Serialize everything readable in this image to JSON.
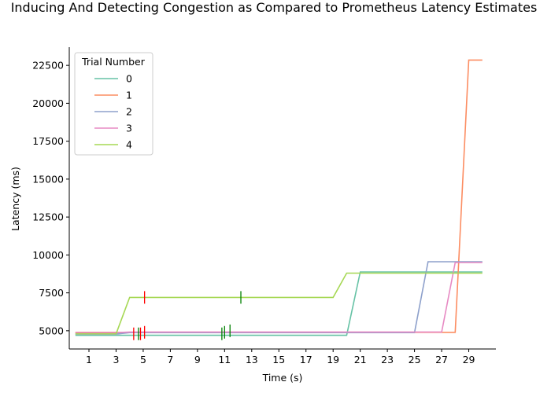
{
  "chart_data": {
    "type": "line",
    "title": "Inducing And Detecting Congestion as Compared to Prometheus Latency Estimates",
    "xlabel": "Time (s)",
    "ylabel": "Latency (ms)",
    "xlim": [
      -0.45,
      31.0
    ],
    "ylim": [
      3800,
      23700
    ],
    "x_ticks": [
      1,
      3,
      5,
      7,
      9,
      11,
      13,
      15,
      17,
      19,
      21,
      23,
      25,
      27,
      29
    ],
    "y_ticks": [
      5000,
      7500,
      10000,
      12500,
      15000,
      17500,
      20000,
      22500
    ],
    "legend": {
      "title": "Trial Number",
      "position": "top-left"
    },
    "series": [
      {
        "name": "0",
        "color": "#66c2a5",
        "points": [
          [
            0,
            4700
          ],
          [
            3,
            4700
          ],
          [
            4,
            4700
          ],
          [
            5,
            4700
          ],
          [
            6,
            4700
          ],
          [
            7,
            4700
          ],
          [
            8,
            4700
          ],
          [
            9,
            4700
          ],
          [
            10,
            4700
          ],
          [
            11,
            4700
          ],
          [
            12,
            4700
          ],
          [
            13,
            4700
          ],
          [
            14,
            4700
          ],
          [
            15,
            4700
          ],
          [
            16,
            4700
          ],
          [
            17,
            4700
          ],
          [
            18,
            4700
          ],
          [
            19,
            4700
          ],
          [
            20,
            4700
          ],
          [
            21,
            8880
          ],
          [
            22,
            8880
          ],
          [
            23,
            8880
          ],
          [
            24,
            8880
          ],
          [
            25,
            8880
          ],
          [
            26,
            8880
          ],
          [
            27,
            8880
          ],
          [
            28,
            8880
          ],
          [
            29,
            8880
          ],
          [
            30,
            8880
          ]
        ]
      },
      {
        "name": "1",
        "color": "#fc8d62",
        "points": [
          [
            0,
            4900
          ],
          [
            3,
            4900
          ],
          [
            4,
            4900
          ],
          [
            5,
            4900
          ],
          [
            10,
            4900
          ],
          [
            15,
            4900
          ],
          [
            20,
            4900
          ],
          [
            25,
            4900
          ],
          [
            26,
            4900
          ],
          [
            27,
            4900
          ],
          [
            28,
            4900
          ],
          [
            29,
            22850
          ],
          [
            30,
            22850
          ]
        ]
      },
      {
        "name": "2",
        "color": "#8da0cb",
        "points": [
          [
            0,
            4780
          ],
          [
            3,
            4780
          ],
          [
            4,
            4880
          ],
          [
            5,
            4880
          ],
          [
            10,
            4880
          ],
          [
            15,
            4880
          ],
          [
            20,
            4880
          ],
          [
            25,
            4880
          ],
          [
            26,
            9550
          ],
          [
            27,
            9550
          ],
          [
            28,
            9550
          ],
          [
            29,
            9550
          ],
          [
            30,
            9550
          ]
        ]
      },
      {
        "name": "3",
        "color": "#e78ac3",
        "points": [
          [
            0,
            4880
          ],
          [
            3,
            4880
          ],
          [
            4,
            4920
          ],
          [
            5,
            4920
          ],
          [
            10,
            4920
          ],
          [
            15,
            4920
          ],
          [
            20,
            4920
          ],
          [
            25,
            4920
          ],
          [
            26,
            4920
          ],
          [
            27,
            4920
          ],
          [
            28,
            9500
          ],
          [
            29,
            9500
          ],
          [
            30,
            9500
          ]
        ]
      },
      {
        "name": "4",
        "color": "#a6d854",
        "points": [
          [
            0,
            4800
          ],
          [
            3,
            4800
          ],
          [
            4,
            7200
          ],
          [
            5,
            7200
          ],
          [
            10,
            7200
          ],
          [
            15,
            7200
          ],
          [
            16,
            7200
          ],
          [
            17,
            7200
          ],
          [
            18,
            7200
          ],
          [
            19,
            7200
          ],
          [
            20,
            8800
          ],
          [
            21,
            8800
          ],
          [
            22,
            8800
          ],
          [
            23,
            8800
          ],
          [
            24,
            8800
          ],
          [
            25,
            8800
          ],
          [
            26,
            8800
          ],
          [
            27,
            8800
          ],
          [
            28,
            8800
          ],
          [
            29,
            8800
          ],
          [
            30,
            8800
          ]
        ]
      }
    ],
    "markers": [
      {
        "x": 4.3,
        "y_center": 4800,
        "color": "#ff0000"
      },
      {
        "x": 4.8,
        "y_center": 4800,
        "color": "#ff0000"
      },
      {
        "x": 4.65,
        "y_center": 4800,
        "color": "#008000"
      },
      {
        "x": 5.1,
        "y_center": 4900,
        "color": "#ff0000"
      },
      {
        "x": 5.1,
        "y_center": 7200,
        "color": "#ff0000"
      },
      {
        "x": 10.8,
        "y_center": 4800,
        "color": "#008000"
      },
      {
        "x": 11.0,
        "y_center": 4900,
        "color": "#008000"
      },
      {
        "x": 11.4,
        "y_center": 5000,
        "color": "#008000"
      },
      {
        "x": 12.2,
        "y_center": 7200,
        "color": "#008000"
      }
    ]
  }
}
